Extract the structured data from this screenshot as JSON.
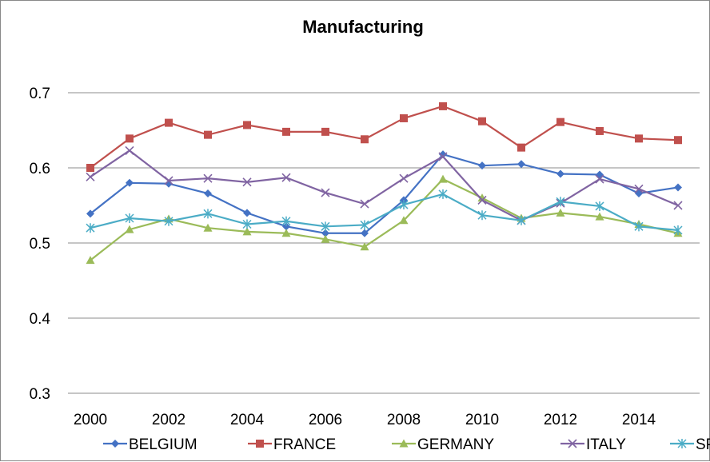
{
  "chart_data": {
    "type": "line",
    "title": "Manufacturing",
    "xlabel": "",
    "ylabel": "",
    "x": [
      2000,
      2001,
      2002,
      2003,
      2004,
      2005,
      2006,
      2007,
      2008,
      2009,
      2010,
      2011,
      2012,
      2013,
      2014,
      2015
    ],
    "x_tick_labels": [
      "2000",
      "2002",
      "2004",
      "2006",
      "2008",
      "2010",
      "2012",
      "2014"
    ],
    "x_tick_values": [
      2000,
      2002,
      2004,
      2006,
      2008,
      2010,
      2012,
      2014
    ],
    "y_tick_labels": [
      "0.3",
      "0.4",
      "0.5",
      "0.6",
      "0.7"
    ],
    "y_tick_values": [
      0.3,
      0.4,
      0.5,
      0.6,
      0.7
    ],
    "ylim": [
      0.3,
      0.7
    ],
    "grid": "horizontal",
    "legend_position": "bottom",
    "series": [
      {
        "name": "BELGIUM",
        "color": "#4472C4",
        "marker": "diamond",
        "values": [
          0.539,
          0.58,
          0.579,
          0.566,
          0.54,
          0.522,
          0.513,
          0.513,
          0.557,
          0.618,
          0.603,
          0.605,
          0.592,
          0.591,
          0.566,
          0.574
        ]
      },
      {
        "name": "FRANCE",
        "color": "#C0504D",
        "marker": "square",
        "values": [
          0.6,
          0.639,
          0.66,
          0.644,
          0.657,
          0.648,
          0.648,
          0.638,
          0.666,
          0.682,
          0.662,
          0.627,
          0.661,
          0.649,
          0.639,
          0.637
        ]
      },
      {
        "name": "GERMANY",
        "color": "#9BBB59",
        "marker": "triangle",
        "values": [
          0.477,
          0.518,
          0.532,
          0.52,
          0.515,
          0.513,
          0.505,
          0.495,
          0.53,
          0.585,
          0.56,
          0.533,
          0.54,
          0.535,
          0.525,
          0.513
        ]
      },
      {
        "name": "ITALY",
        "color": "#8064A2",
        "marker": "x",
        "values": [
          0.588,
          0.623,
          0.583,
          0.586,
          0.581,
          0.587,
          0.567,
          0.552,
          0.586,
          0.615,
          0.557,
          0.53,
          0.553,
          0.585,
          0.572,
          0.55
        ]
      },
      {
        "name": "SPAIN",
        "color": "#4BACC6",
        "marker": "star",
        "values": [
          0.52,
          0.533,
          0.529,
          0.539,
          0.525,
          0.529,
          0.522,
          0.524,
          0.551,
          0.565,
          0.537,
          0.53,
          0.555,
          0.549,
          0.522,
          0.517
        ]
      }
    ]
  }
}
